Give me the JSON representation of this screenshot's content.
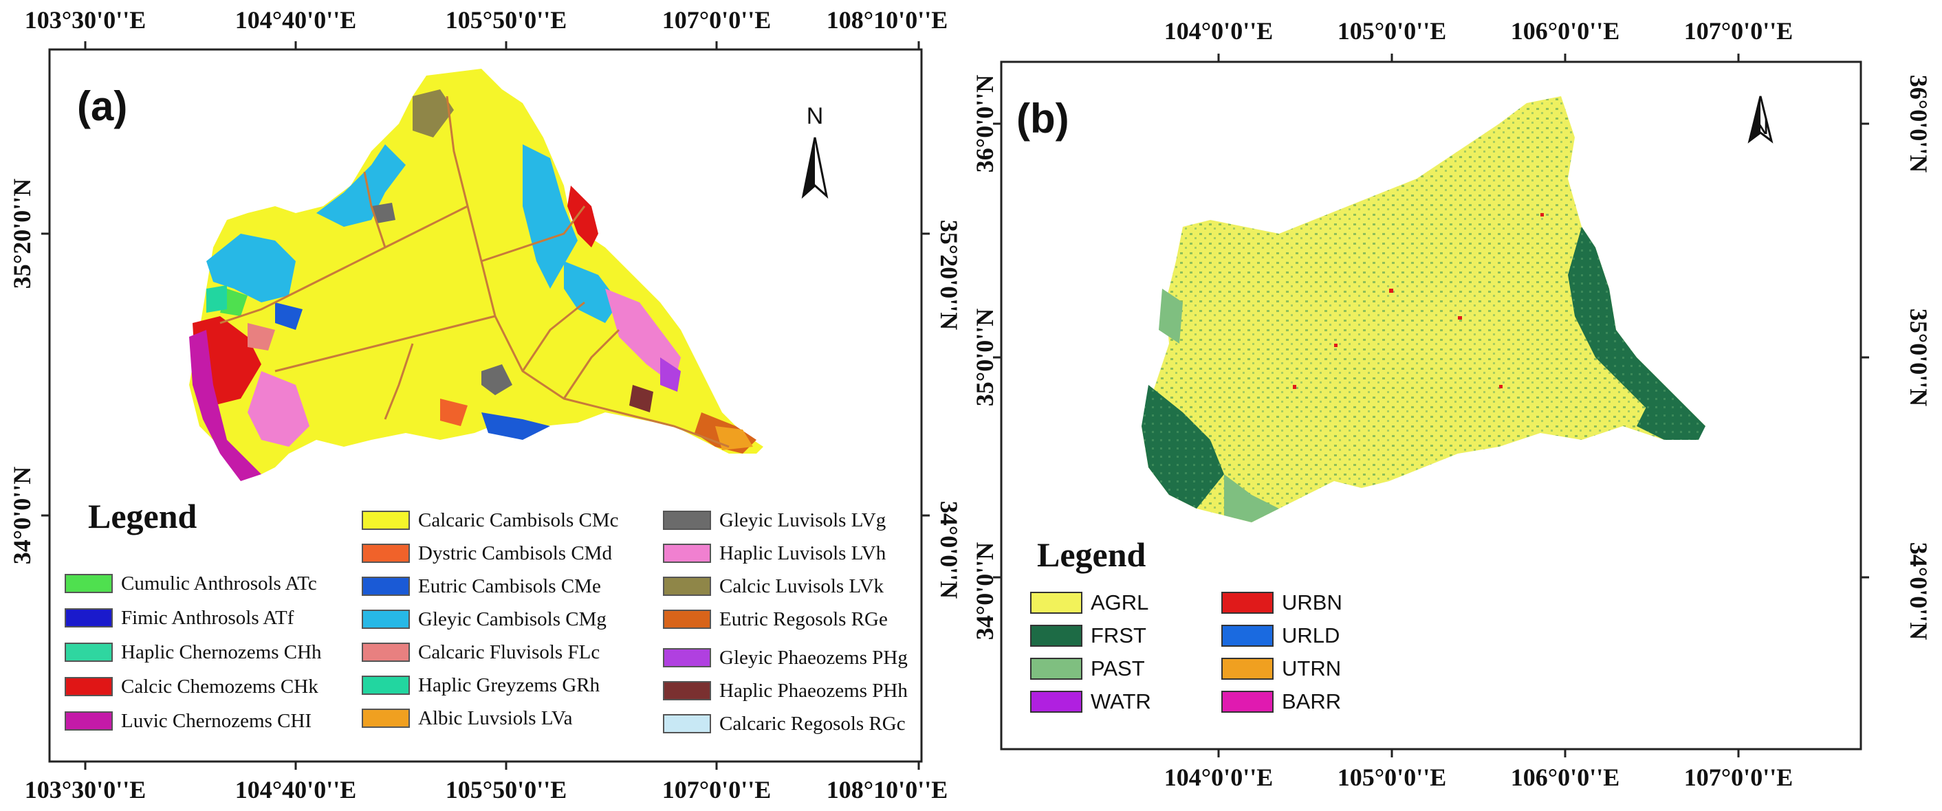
{
  "panel_a": {
    "tag": "(a)",
    "north_label": "N",
    "top_ticks": [
      "103°30'0''E",
      "104°40'0''E",
      "105°50'0''E",
      "107°0'0''E",
      "108°10'0''E"
    ],
    "bottom_ticks": [
      "103°30'0''E",
      "104°40'0''E",
      "105°50'0''E",
      "107°0'0''E",
      "108°10'0''E"
    ],
    "left_ticks": [
      "35°20'0''N",
      "34°0'0''N"
    ],
    "right_ticks": [
      "35°20'0''N",
      "34°0'0''N"
    ],
    "legend_title": "Legend",
    "legend": [
      {
        "label": "Cumulic Anthrosols ATc",
        "color": "#4fe04f"
      },
      {
        "label": "Fimic Anthrosols ATf",
        "color": "#1a1acc"
      },
      {
        "label": "Haplic Chernozems CHh",
        "color": "#2fd6a0"
      },
      {
        "label": "Calcic Chemozems CHk",
        "color": "#e01616"
      },
      {
        "label": "Luvic Chernozems CHI",
        "color": "#c41aa8"
      },
      {
        "label": "Calcaric Cambisols CMc",
        "color": "#f5f52a"
      },
      {
        "label": "Dystric Cambisols CMd",
        "color": "#f0622a"
      },
      {
        "label": "Eutric Cambisols CMe",
        "color": "#1a5ad6"
      },
      {
        "label": "Gleyic Cambisols CMg",
        "color": "#27b8e6"
      },
      {
        "label": "Calcaric Fluvisols FLc",
        "color": "#e88080"
      },
      {
        "label": "Haplic Greyzems GRh",
        "color": "#22d6a0"
      },
      {
        "label": "Albic Luvsiols LVa",
        "color": "#f0a020"
      },
      {
        "label": "Gleyic Luvisols LVg",
        "color": "#6b6b6b"
      },
      {
        "label": "Haplic Luvisols LVh",
        "color": "#f080d0"
      },
      {
        "label": "Calcic Luvisols LVk",
        "color": "#8f8648"
      },
      {
        "label": "Eutric Regosols RGe",
        "color": "#d8641a"
      },
      {
        "label": "Gleyic Phaeozems PHg",
        "color": "#b040e0"
      },
      {
        "label": "Haplic Phaeozems PHh",
        "color": "#7a3030"
      },
      {
        "label": "Calcaric Regosols RGc",
        "color": "#c8e8f5"
      }
    ]
  },
  "panel_b": {
    "tag": "(b)",
    "north_label": "N",
    "top_ticks": [
      "104°0'0''E",
      "105°0'0''E",
      "106°0'0''E",
      "107°0'0''E"
    ],
    "bottom_ticks": [
      "104°0'0''E",
      "105°0'0''E",
      "106°0'0''E",
      "107°0'0''E"
    ],
    "left_ticks": [
      "36°0'0''N",
      "35°0'0''N",
      "34°0'0''N"
    ],
    "right_ticks": [
      "36°0'0''N",
      "35°0'0''N",
      "34°0'0''N"
    ],
    "legend_title": "Legend",
    "legend": [
      {
        "label": "AGRL",
        "color": "#f2f25a"
      },
      {
        "label": "FRST",
        "color": "#1d6b45"
      },
      {
        "label": "PAST",
        "color": "#7fbf80"
      },
      {
        "label": "WATR",
        "color": "#b020e0"
      },
      {
        "label": "URBN",
        "color": "#e01a1a"
      },
      {
        "label": "URLD",
        "color": "#1a6ae0"
      },
      {
        "label": "UTRN",
        "color": "#f0a020"
      },
      {
        "label": "BARR",
        "color": "#e01ab0"
      }
    ]
  }
}
